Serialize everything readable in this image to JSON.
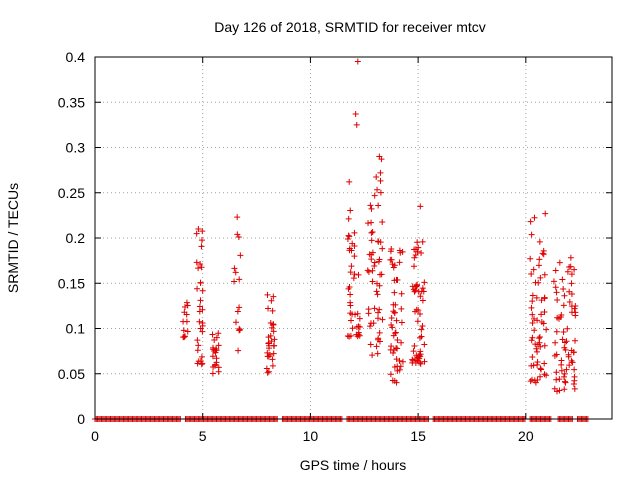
{
  "chart_data": {
    "type": "scatter",
    "title": "Day 126 of 2018, SRMTID for receiver mtcv",
    "xlabel": "GPS time / hours",
    "ylabel": "SRMTID / TECUs",
    "xlim": [
      0,
      24
    ],
    "ylim": [
      0,
      0.4
    ],
    "x_ticks": [
      0,
      5,
      10,
      15,
      20
    ],
    "y_ticks": [
      0,
      0.05,
      0.1,
      0.15,
      0.2,
      0.25,
      0.3,
      0.35,
      0.4
    ],
    "x_tick_labels": [
      "0",
      "5",
      "10",
      "15",
      "20"
    ],
    "y_tick_labels": [
      "0",
      "0.05",
      "0.1",
      "0.15",
      "0.2",
      "0.25",
      "0.3",
      "0.35",
      "0.4"
    ],
    "grid": true,
    "marker": "+",
    "color": "#e00000",
    "series": [
      {
        "name": "SRMTID",
        "clusters": [
          {
            "x_center": 4.2,
            "x_spread": 0.12,
            "count": 12,
            "y_min": 0.09,
            "y_max": 0.14
          },
          {
            "x_center": 4.85,
            "x_spread": 0.15,
            "count": 30,
            "y_min": 0.06,
            "y_max": 0.21
          },
          {
            "x_center": 5.6,
            "x_spread": 0.15,
            "count": 20,
            "y_min": 0.05,
            "y_max": 0.11
          },
          {
            "x_center": 6.6,
            "x_spread": 0.15,
            "count": 14,
            "y_min": 0.07,
            "y_max": 0.22
          },
          {
            "x_center": 8.15,
            "x_spread": 0.2,
            "count": 30,
            "y_min": 0.05,
            "y_max": 0.14
          },
          {
            "x_center": 12.0,
            "x_spread": 0.3,
            "count": 40,
            "y_min": 0.09,
            "y_max": 0.26
          },
          {
            "x_center": 13.0,
            "x_spread": 0.35,
            "count": 55,
            "y_min": 0.07,
            "y_max": 0.29
          },
          {
            "x_center": 14.0,
            "x_spread": 0.3,
            "count": 50,
            "y_min": 0.04,
            "y_max": 0.19
          },
          {
            "x_center": 15.0,
            "x_spread": 0.3,
            "count": 55,
            "y_min": 0.06,
            "y_max": 0.2
          },
          {
            "x_center": 20.6,
            "x_spread": 0.4,
            "count": 60,
            "y_min": 0.04,
            "y_max": 0.23
          },
          {
            "x_center": 21.8,
            "x_spread": 0.5,
            "count": 70,
            "y_min": 0.03,
            "y_max": 0.18
          }
        ],
        "outliers": [
          {
            "x": 12.2,
            "y": 0.395
          },
          {
            "x": 12.1,
            "y": 0.337
          },
          {
            "x": 12.15,
            "y": 0.325
          },
          {
            "x": 13.2,
            "y": 0.29
          },
          {
            "x": 13.25,
            "y": 0.272
          },
          {
            "x": 11.8,
            "y": 0.262
          },
          {
            "x": 15.1,
            "y": 0.235
          },
          {
            "x": 20.9,
            "y": 0.227
          },
          {
            "x": 6.6,
            "y": 0.223
          },
          {
            "x": 4.8,
            "y": 0.21
          }
        ],
        "zero_band": {
          "y": 0,
          "segments": [
            [
              0,
              4.0
            ],
            [
              4.2,
              8.5
            ],
            [
              8.7,
              11.5
            ],
            [
              11.7,
              15.5
            ],
            [
              15.7,
              20.0
            ],
            [
              20.2,
              21.2
            ],
            [
              21.5,
              22.2
            ],
            [
              22.4,
              22.9
            ]
          ]
        }
      }
    ]
  }
}
